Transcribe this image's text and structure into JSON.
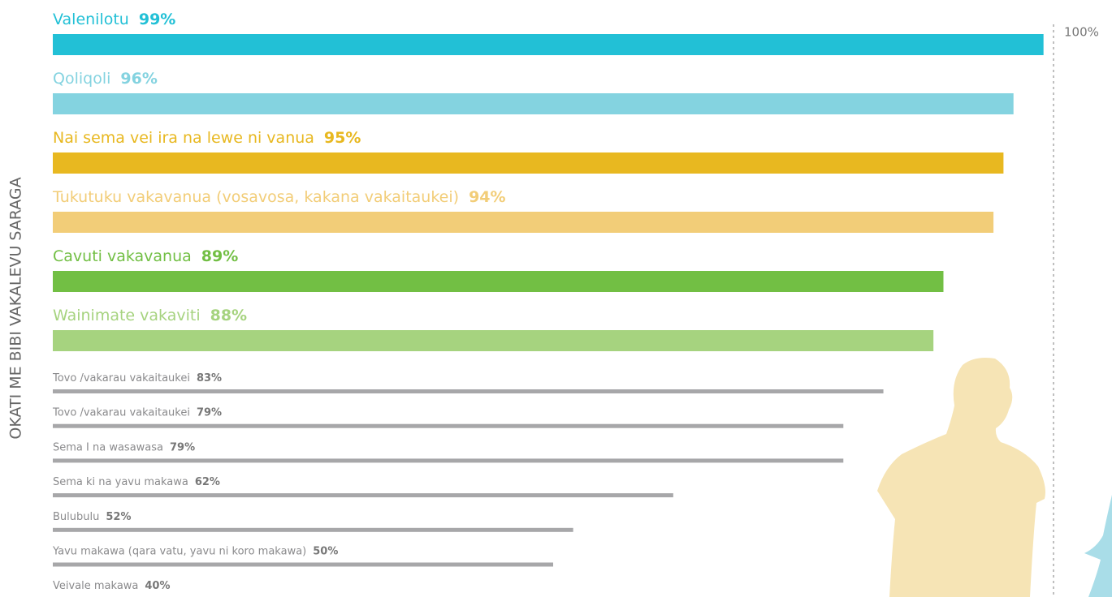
{
  "chart_data": {
    "type": "bar",
    "orientation": "horizontal",
    "y_axis_label": "OKATI ME BIBI VAKALEVU SARAGA",
    "categories": [
      "Valenilotu",
      "Qoliqoli",
      "Nai sema vei ira na lewe ni vanua",
      "Tukutuku vakavanua (vosavosa, kakana vakaitaukei)",
      "Cavuti vakavanua",
      "Wainimate vakaviti",
      "Tovo /vakarau vakaitaukei",
      "Tovo /vakarau vakaitaukei",
      "Sema I na wasawasa",
      "Sema ki na yavu makawa",
      "Bulubulu",
      "Yavu makawa (qara vatu, yavu ni koro makawa)",
      "Veivale makawa"
    ],
    "values": [
      99,
      96,
      95,
      94,
      89,
      88,
      83,
      79,
      79,
      62,
      52,
      50,
      40
    ],
    "value_labels": [
      "99%",
      "96%",
      "95%",
      "94%",
      "89%",
      "88%",
      "83%",
      "79%",
      "79%",
      "62%",
      "52%",
      "50%",
      "40%"
    ],
    "colors": [
      "#22c0d6",
      "#84d3e0",
      "#e8b820",
      "#f2cd78",
      "#72bf44",
      "#a6d37f",
      "#a7a7a9",
      "#a7a7a9",
      "#a7a7a9",
      "#a7a7a9",
      "#a7a7a9",
      "#a7a7a9",
      "#a7a7a9"
    ],
    "xlim": [
      0,
      100
    ],
    "xticks": [
      {
        "value": 100,
        "label": "100%"
      }
    ]
  }
}
